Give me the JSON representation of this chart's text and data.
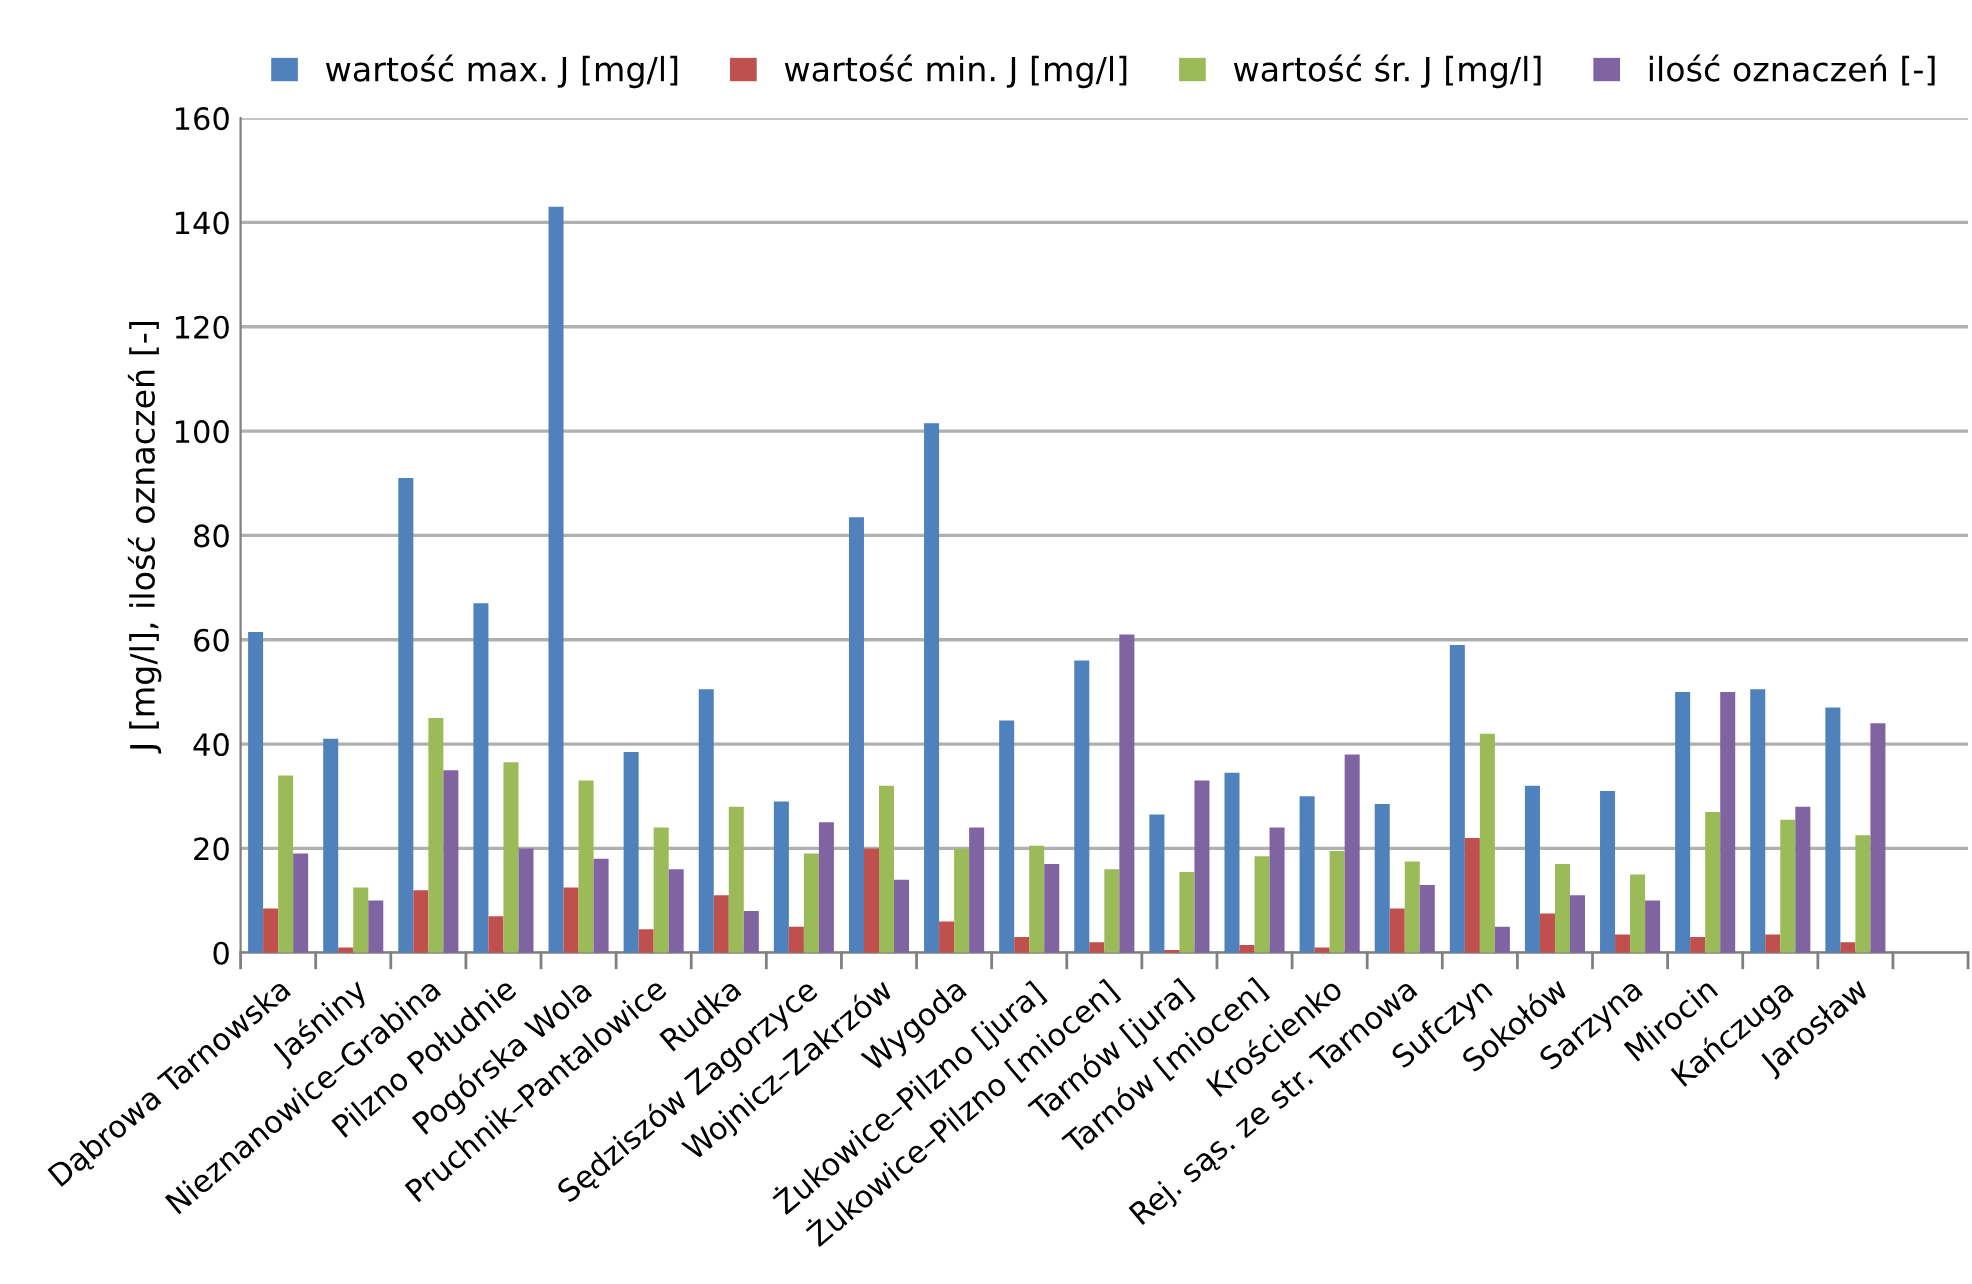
{
  "chart_data": {
    "type": "bar",
    "ylabel": "J [mg/l], ilość oznaczeń [-]",
    "categories": [
      "Dąbrowa Tarnowska",
      "Jaśniny",
      "Nieznanowice–Grabina",
      "Pilzno Południe",
      "Pogórska Wola",
      "Pruchnik–Pantalowice",
      "Rudka",
      "Sędziszów Zagorzyce",
      "Wojnicz–Zakrzów",
      "Wygoda",
      "Żukowice–Pilzno [jura]",
      "Żukowice–Pilzno [miocen]",
      "Tarnów [jura]",
      "Tarnów [miocen]",
      "Krościenko",
      "Rej. sąs. ze str. Tarnowa",
      "Sufczyn",
      "Sokołów",
      "Sarzyna",
      "Mirocin",
      "Kańczuga",
      "Jarosław",
      null
    ],
    "series": [
      {
        "name": "wartość max. J [mg/l]",
        "color": "#4f81bd",
        "values": [
          61.5,
          41,
          91,
          67,
          143,
          38.5,
          50.5,
          29,
          83.5,
          101.5,
          44.5,
          56,
          26.5,
          34.5,
          30,
          28.5,
          59,
          32,
          31,
          50,
          50.5,
          47,
          null
        ]
      },
      {
        "name": "wartość min. J [mg/l]",
        "color": "#c0504d",
        "values": [
          8.5,
          1,
          12,
          7,
          12.5,
          4.5,
          11,
          5,
          20,
          6,
          3,
          2,
          0.5,
          1.5,
          1,
          8.5,
          22,
          7.5,
          3.5,
          3,
          3.5,
          2,
          null
        ]
      },
      {
        "name": "wartość śr. J [mg/l]",
        "color": "#9bbb59",
        "values": [
          34,
          12.5,
          45,
          36.5,
          33,
          24,
          28,
          19,
          32,
          20,
          20.5,
          16,
          15.5,
          18.5,
          19.5,
          17.5,
          42,
          17,
          15,
          27,
          25.5,
          22.5,
          null
        ]
      },
      {
        "name": "ilość oznaczeń [-]",
        "color": "#8064a2",
        "values": [
          19,
          10,
          35,
          20,
          18,
          16,
          8,
          25,
          14,
          24,
          17,
          61,
          33,
          24,
          38,
          13,
          5,
          11,
          10,
          50,
          28,
          44,
          null
        ]
      }
    ],
    "ylim": [
      0,
      160
    ],
    "yticks": [
      0,
      20,
      40,
      60,
      80,
      100,
      120,
      140,
      160
    ],
    "grid": "y",
    "legend": "top"
  }
}
